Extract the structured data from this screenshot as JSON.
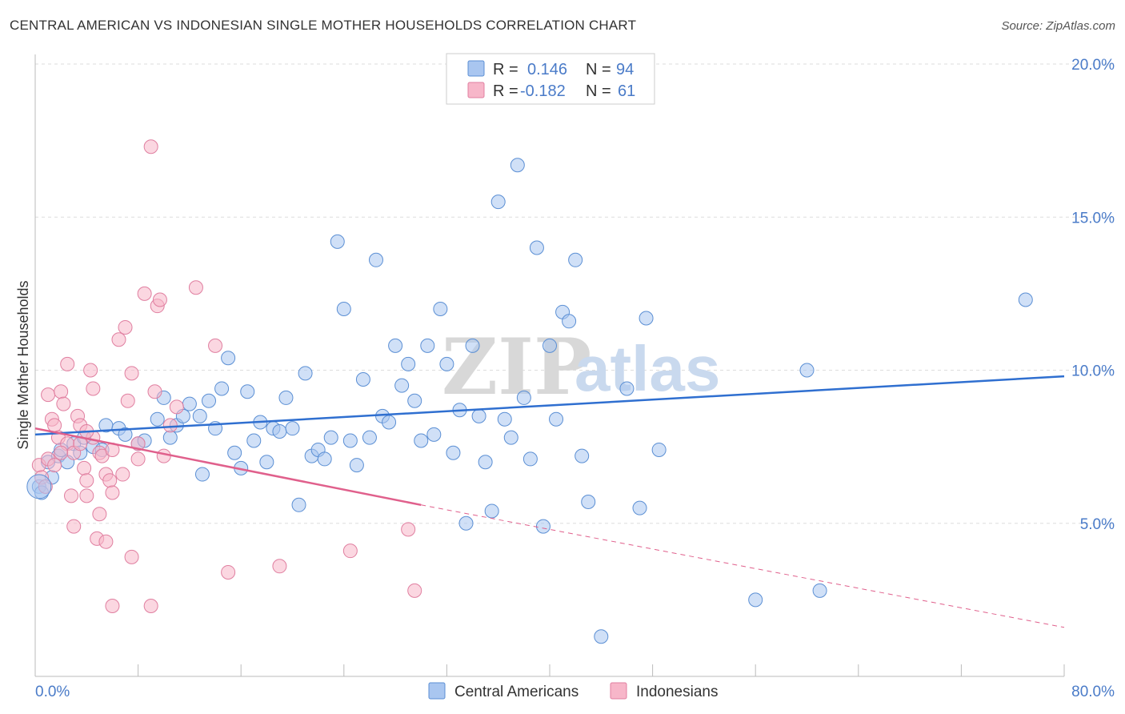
{
  "header": {
    "title": "CENTRAL AMERICAN VS INDONESIAN SINGLE MOTHER HOUSEHOLDS CORRELATION CHART",
    "source": "Source: ZipAtlas.com"
  },
  "watermark": {
    "zip": "ZIP",
    "atlas": "atlas"
  },
  "legend": {
    "rows": [
      {
        "r_label": "R =",
        "r_value": "0.146",
        "n_label": "N =",
        "n_value": "94",
        "color": "#a9c6f0"
      },
      {
        "r_label": "R =",
        "r_value": "-0.182",
        "n_label": "N =",
        "n_value": "61",
        "color": "#f7b6c9"
      }
    ]
  },
  "chart_data": {
    "type": "scatter",
    "ylabel": "Single Mother Households",
    "xlim": [
      0,
      80
    ],
    "ylim": [
      0,
      20
    ],
    "x_tick_labels": [
      "0.0%",
      "80.0%"
    ],
    "y_ticks": [
      5,
      10,
      15,
      20
    ],
    "y_tick_labels": [
      "5.0%",
      "10.0%",
      "15.0%",
      "20.0%"
    ],
    "grid": true,
    "series": [
      {
        "name": "Central Americans",
        "color": "#a9c6f0",
        "stroke": "#5b8fd4",
        "trend": {
          "x0": 0,
          "y0": 7.9,
          "x1": 80,
          "y1": 9.8,
          "color": "#2f6fd0"
        },
        "points": [
          [
            0.3,
            6.2
          ],
          [
            0.5,
            6.0
          ],
          [
            1.0,
            7.0
          ],
          [
            1.3,
            6.5
          ],
          [
            1.8,
            7.2
          ],
          [
            2.0,
            7.4
          ],
          [
            2.5,
            7.0
          ],
          [
            3.0,
            7.6
          ],
          [
            3.5,
            7.3
          ],
          [
            3.8,
            7.8
          ],
          [
            4.5,
            7.5
          ],
          [
            5.2,
            7.4
          ],
          [
            5.5,
            8.2
          ],
          [
            6.5,
            8.1
          ],
          [
            7.0,
            7.9
          ],
          [
            8.0,
            7.6
          ],
          [
            8.5,
            7.7
          ],
          [
            9.5,
            8.4
          ],
          [
            10.0,
            9.1
          ],
          [
            10.5,
            7.8
          ],
          [
            11.0,
            8.2
          ],
          [
            11.5,
            8.5
          ],
          [
            12.0,
            8.9
          ],
          [
            12.8,
            8.5
          ],
          [
            13.0,
            6.6
          ],
          [
            13.5,
            9.0
          ],
          [
            14.0,
            8.1
          ],
          [
            14.5,
            9.4
          ],
          [
            15.0,
            10.4
          ],
          [
            15.5,
            7.3
          ],
          [
            16.0,
            6.8
          ],
          [
            16.5,
            9.3
          ],
          [
            17.0,
            7.7
          ],
          [
            17.5,
            8.3
          ],
          [
            18.0,
            7.0
          ],
          [
            18.5,
            8.1
          ],
          [
            19.0,
            8.0
          ],
          [
            19.5,
            9.1
          ],
          [
            20.0,
            8.1
          ],
          [
            20.5,
            5.6
          ],
          [
            21.0,
            9.9
          ],
          [
            21.5,
            7.2
          ],
          [
            22.0,
            7.4
          ],
          [
            22.5,
            7.1
          ],
          [
            23.0,
            7.8
          ],
          [
            23.5,
            14.2
          ],
          [
            24.0,
            12.0
          ],
          [
            24.5,
            7.7
          ],
          [
            25.0,
            6.9
          ],
          [
            25.5,
            9.7
          ],
          [
            26.0,
            7.8
          ],
          [
            26.5,
            13.6
          ],
          [
            27.0,
            8.5
          ],
          [
            27.5,
            8.3
          ],
          [
            28.0,
            10.8
          ],
          [
            28.5,
            9.5
          ],
          [
            29.0,
            10.2
          ],
          [
            29.5,
            9.0
          ],
          [
            30.0,
            7.7
          ],
          [
            30.5,
            10.8
          ],
          [
            31.0,
            7.9
          ],
          [
            31.5,
            12.0
          ],
          [
            32.0,
            10.2
          ],
          [
            32.5,
            7.3
          ],
          [
            33.0,
            8.7
          ],
          [
            33.5,
            5.0
          ],
          [
            34.0,
            10.8
          ],
          [
            34.5,
            8.5
          ],
          [
            35.0,
            7.0
          ],
          [
            35.5,
            5.4
          ],
          [
            36.0,
            15.5
          ],
          [
            36.5,
            8.4
          ],
          [
            37.0,
            7.8
          ],
          [
            37.5,
            16.7
          ],
          [
            38.0,
            9.1
          ],
          [
            38.5,
            7.1
          ],
          [
            39.0,
            14.0
          ],
          [
            39.5,
            4.9
          ],
          [
            40.0,
            10.8
          ],
          [
            40.5,
            8.4
          ],
          [
            41.0,
            11.9
          ],
          [
            41.5,
            11.6
          ],
          [
            42.0,
            13.6
          ],
          [
            42.5,
            7.2
          ],
          [
            43.0,
            5.7
          ],
          [
            44.0,
            1.3
          ],
          [
            46.0,
            9.4
          ],
          [
            47.0,
            5.5
          ],
          [
            47.5,
            11.7
          ],
          [
            48.5,
            7.4
          ],
          [
            56.0,
            2.5
          ],
          [
            60.0,
            10.0
          ],
          [
            61.0,
            2.8
          ],
          [
            77.0,
            12.3
          ]
        ]
      },
      {
        "name": "Indonesians",
        "color": "#f7b6c9",
        "stroke": "#e07fa0",
        "trend": {
          "x0": 0,
          "y0": 8.1,
          "x1": 30,
          "y1": 5.6,
          "dash_x1": 80,
          "dash_y1": 1.6,
          "color": "#e0608c"
        },
        "points": [
          [
            0.3,
            6.9
          ],
          [
            0.5,
            6.5
          ],
          [
            0.8,
            6.2
          ],
          [
            1.0,
            7.1
          ],
          [
            1.0,
            9.2
          ],
          [
            1.3,
            8.4
          ],
          [
            1.5,
            8.2
          ],
          [
            1.8,
            7.8
          ],
          [
            2.0,
            9.3
          ],
          [
            2.2,
            8.9
          ],
          [
            2.5,
            7.6
          ],
          [
            2.5,
            10.2
          ],
          [
            2.8,
            5.9
          ],
          [
            3.0,
            7.3
          ],
          [
            3.0,
            4.9
          ],
          [
            3.3,
            8.5
          ],
          [
            3.5,
            8.2
          ],
          [
            3.5,
            7.6
          ],
          [
            3.8,
            6.8
          ],
          [
            4.0,
            6.4
          ],
          [
            4.0,
            5.9
          ],
          [
            4.3,
            10.0
          ],
          [
            4.5,
            9.4
          ],
          [
            4.5,
            7.8
          ],
          [
            4.8,
            4.5
          ],
          [
            5.0,
            5.3
          ],
          [
            5.0,
            7.3
          ],
          [
            5.2,
            7.2
          ],
          [
            5.5,
            6.6
          ],
          [
            5.5,
            4.4
          ],
          [
            5.8,
            6.4
          ],
          [
            6.0,
            7.4
          ],
          [
            6.0,
            6.0
          ],
          [
            6.5,
            11.0
          ],
          [
            6.8,
            6.6
          ],
          [
            7.0,
            11.4
          ],
          [
            7.2,
            9.0
          ],
          [
            7.5,
            3.9
          ],
          [
            7.5,
            9.9
          ],
          [
            8.0,
            7.1
          ],
          [
            8.0,
            7.6
          ],
          [
            8.5,
            12.5
          ],
          [
            9.0,
            17.3
          ],
          [
            9.3,
            9.3
          ],
          [
            9.5,
            12.1
          ],
          [
            9.7,
            12.3
          ],
          [
            10.0,
            7.2
          ],
          [
            10.5,
            8.2
          ],
          [
            11.0,
            8.8
          ],
          [
            12.5,
            12.7
          ],
          [
            14.0,
            10.8
          ],
          [
            15.0,
            3.4
          ],
          [
            19.0,
            3.6
          ],
          [
            24.5,
            4.1
          ],
          [
            29.0,
            4.8
          ],
          [
            29.5,
            2.8
          ],
          [
            6.0,
            2.3
          ],
          [
            9.0,
            2.3
          ],
          [
            2.0,
            7.3
          ],
          [
            1.5,
            6.9
          ],
          [
            4.0,
            8.0
          ]
        ]
      }
    ]
  },
  "bottom_legend": {
    "items": [
      {
        "label": "Central Americans",
        "color": "#a9c6f0"
      },
      {
        "label": "Indonesians",
        "color": "#f7b6c9"
      }
    ]
  }
}
